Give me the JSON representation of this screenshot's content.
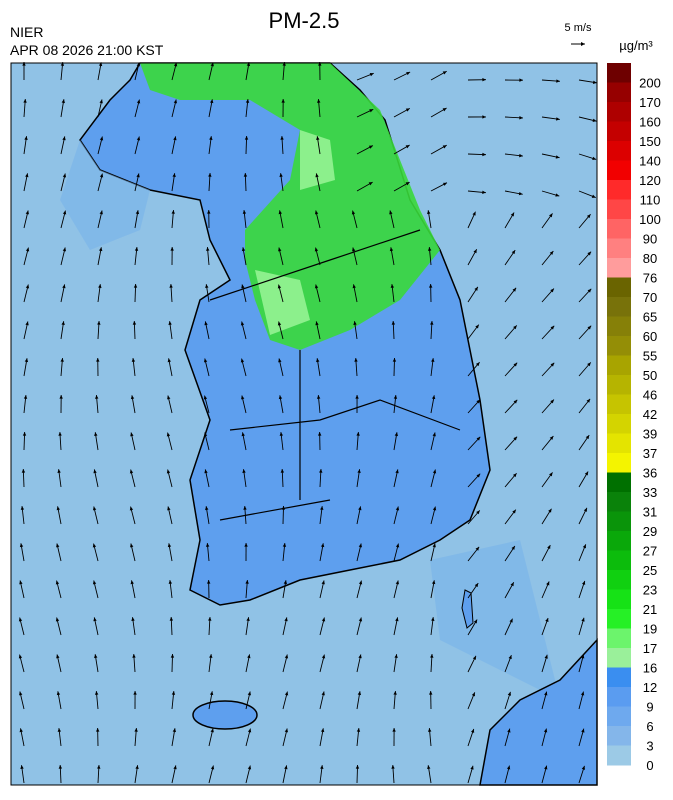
{
  "header": {
    "title": "PM-2.5",
    "agency": "NIER",
    "timestamp": "APR 08 2026 21:00 KST",
    "wind_scale": "5 m/s",
    "unit": "µg/m³"
  },
  "colorbar": {
    "labels": [
      200,
      170,
      160,
      150,
      140,
      120,
      110,
      100,
      90,
      80,
      76,
      70,
      65,
      60,
      55,
      50,
      46,
      42,
      39,
      37,
      36,
      33,
      31,
      29,
      27,
      25,
      23,
      21,
      19,
      17,
      16,
      12,
      9,
      6,
      3,
      0
    ],
    "colors": [
      "#6e0000",
      "#960000",
      "#ae0000",
      "#c40000",
      "#dc0000",
      "#f20000",
      "#ff2a2a",
      "#ff4646",
      "#ff6464",
      "#ff8080",
      "#ff9c9c",
      "#6a6400",
      "#78720a",
      "#868008",
      "#948e06",
      "#a8a400",
      "#b6b400",
      "#c6c400",
      "#d4d400",
      "#e4e400",
      "#f4f400",
      "#007000",
      "#0a820a",
      "#0a940a",
      "#0aa80a",
      "#0cbc0c",
      "#10d010",
      "#16e216",
      "#26f026",
      "#6cf46c",
      "#9af09a",
      "#3a8ef0",
      "#5a9cf0",
      "#6ea9ee",
      "#84b6ea",
      "#9ccae6"
    ]
  }
}
